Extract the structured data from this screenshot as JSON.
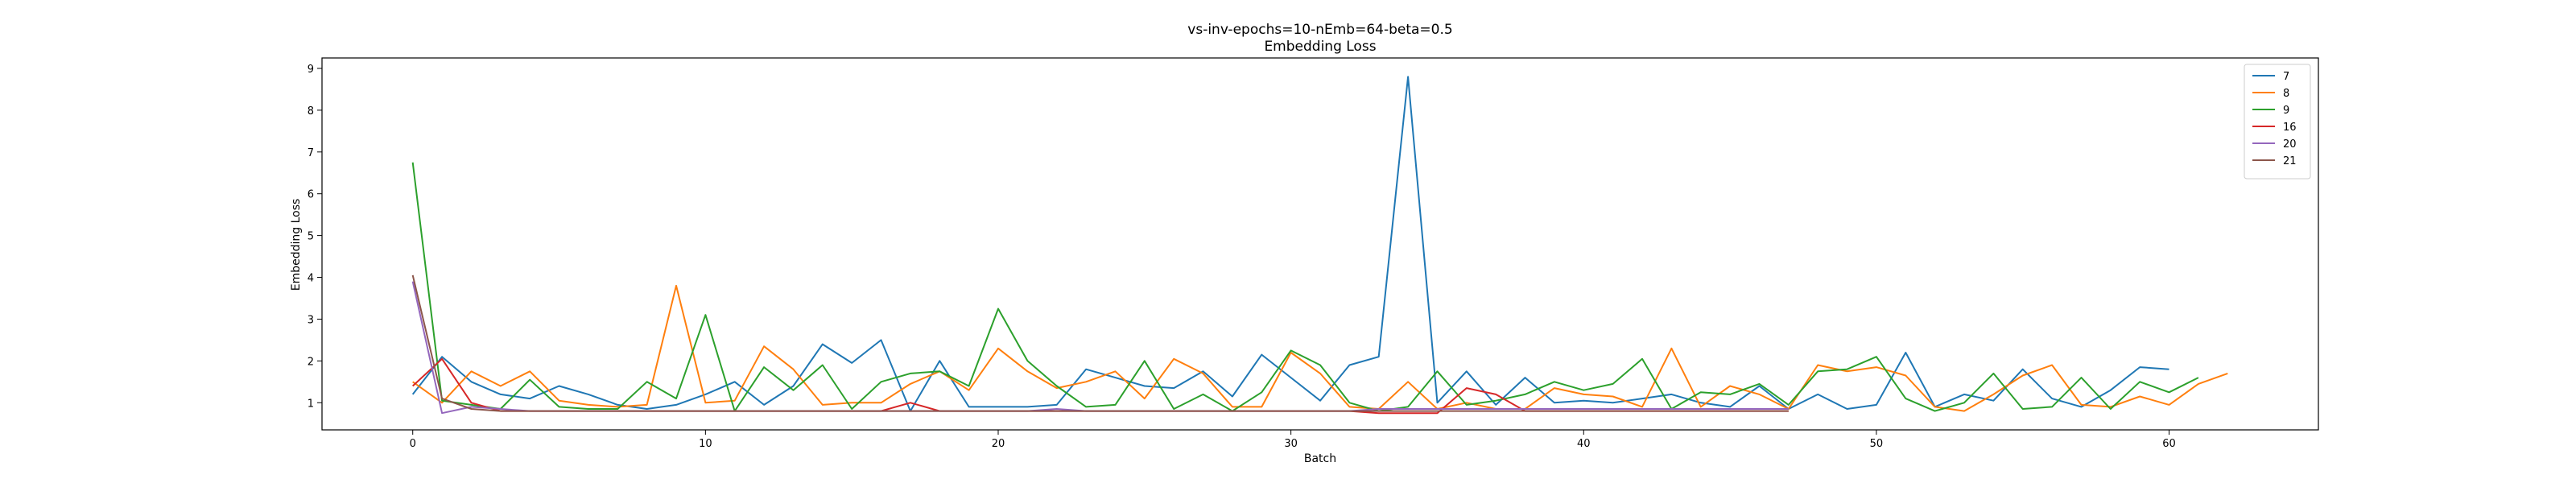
{
  "chart_data": {
    "type": "line",
    "title": "vs-inv-epochs=10-nEmb=64-beta=0.5",
    "subtitle": "Embedding Loss",
    "xlabel": "Batch",
    "ylabel": "Embedding Loss",
    "xlim": [
      -3.1,
      65.1
    ],
    "ylim": [
      0.35,
      9.25
    ],
    "xticks": [
      0,
      10,
      20,
      30,
      40,
      50,
      60
    ],
    "yticks": [
      1,
      2,
      3,
      4,
      5,
      6,
      7,
      8,
      9
    ],
    "grid": false,
    "legend_position": "top-right",
    "series": [
      {
        "name": "7",
        "color": "#1f77b4",
        "values": [
          1.2,
          2.1,
          1.5,
          1.2,
          1.1,
          1.4,
          1.2,
          0.95,
          0.85,
          0.95,
          1.2,
          1.5,
          0.95,
          1.4,
          2.4,
          1.95,
          2.5,
          0.8,
          2.0,
          0.9,
          0.9,
          0.9,
          0.95,
          1.8,
          1.6,
          1.4,
          1.35,
          1.75,
          1.15,
          2.15,
          1.6,
          1.05,
          1.9,
          2.1,
          8.8,
          1.0,
          1.75,
          0.95,
          1.6,
          1.0,
          1.05,
          1.0,
          1.1,
          1.2,
          1.0,
          0.9,
          1.4,
          0.85,
          1.2,
          0.85,
          0.95,
          2.2,
          0.9,
          1.2,
          1.05,
          1.8,
          1.1,
          0.9,
          1.3,
          1.85,
          1.8
        ]
      },
      {
        "name": "8",
        "color": "#ff7f0e",
        "values": [
          1.5,
          1.0,
          1.75,
          1.4,
          1.75,
          1.05,
          0.95,
          0.9,
          0.95,
          3.8,
          1.0,
          1.05,
          2.35,
          1.8,
          0.95,
          1.0,
          1.0,
          1.45,
          1.75,
          1.3,
          2.3,
          1.75,
          1.35,
          1.5,
          1.75,
          1.1,
          2.05,
          1.7,
          0.9,
          0.9,
          2.2,
          1.7,
          0.9,
          0.85,
          1.5,
          0.85,
          1.0,
          0.85,
          0.85,
          1.35,
          1.2,
          1.15,
          0.9,
          2.3,
          0.9,
          1.4,
          1.2,
          0.85,
          1.9,
          1.75,
          1.85,
          1.65,
          0.9,
          0.8,
          1.2,
          1.65,
          1.9,
          0.95,
          0.9,
          1.15,
          0.95,
          1.45,
          1.7
        ]
      },
      {
        "name": "9",
        "color": "#2ca02c",
        "values": [
          6.75,
          1.05,
          0.95,
          0.85,
          1.55,
          0.9,
          0.85,
          0.85,
          1.5,
          1.1,
          3.1,
          0.8,
          1.85,
          1.3,
          1.9,
          0.85,
          1.5,
          1.7,
          1.75,
          1.4,
          3.25,
          2.0,
          1.4,
          0.9,
          0.95,
          2.0,
          0.85,
          1.2,
          0.8,
          1.25,
          2.25,
          1.9,
          1.0,
          0.8,
          0.9,
          1.75,
          0.95,
          1.05,
          1.2,
          1.5,
          1.3,
          1.45,
          2.05,
          0.85,
          1.25,
          1.2,
          1.45,
          0.95,
          1.75,
          1.8,
          2.1,
          1.1,
          0.8,
          1.0,
          1.7,
          0.85,
          0.9,
          1.6,
          0.85,
          1.5,
          1.25,
          1.6
        ]
      },
      {
        "name": "16",
        "color": "#d62728",
        "values": [
          1.4,
          2.05,
          1.0,
          0.8,
          0.8,
          0.8,
          0.8,
          0.8,
          0.8,
          0.8,
          0.8,
          0.8,
          0.8,
          0.8,
          0.8,
          0.8,
          0.8,
          1.0,
          0.8,
          0.8,
          0.8,
          0.8,
          0.8,
          0.8,
          0.8,
          0.8,
          0.8,
          0.8,
          0.8,
          0.8,
          0.8,
          0.8,
          0.8,
          0.75,
          0.75,
          0.75,
          1.35,
          1.2,
          0.8,
          0.8,
          0.8,
          0.8,
          0.8,
          0.8,
          0.8,
          0.8,
          0.8,
          0.8
        ]
      },
      {
        "name": "20",
        "color": "#9467bd",
        "values": [
          3.9,
          0.75,
          0.9,
          0.85,
          0.8,
          0.8,
          0.8,
          0.8,
          0.8,
          0.8,
          0.8,
          0.8,
          0.8,
          0.8,
          0.8,
          0.8,
          0.8,
          0.8,
          0.8,
          0.8,
          0.8,
          0.8,
          0.85,
          0.8,
          0.8,
          0.8,
          0.8,
          0.8,
          0.8,
          0.8,
          0.8,
          0.8,
          0.8,
          0.85,
          0.85,
          0.85,
          0.85,
          0.85,
          0.85,
          0.85,
          0.85,
          0.85,
          0.85,
          0.85,
          0.85,
          0.85,
          0.85,
          0.85
        ]
      },
      {
        "name": "21",
        "color": "#8c564b",
        "values": [
          4.05,
          1.1,
          0.85,
          0.8,
          0.8,
          0.8,
          0.8,
          0.8,
          0.8,
          0.8,
          0.8,
          0.8,
          0.8,
          0.8,
          0.8,
          0.8,
          0.8,
          0.8,
          0.8,
          0.8,
          0.8,
          0.8,
          0.8,
          0.8,
          0.8,
          0.8,
          0.8,
          0.8,
          0.8,
          0.8,
          0.8,
          0.8,
          0.8,
          0.8,
          0.8,
          0.8,
          0.8,
          0.8,
          0.8,
          0.8,
          0.8,
          0.8,
          0.8,
          0.8,
          0.8,
          0.8,
          0.8,
          0.8
        ]
      }
    ]
  }
}
